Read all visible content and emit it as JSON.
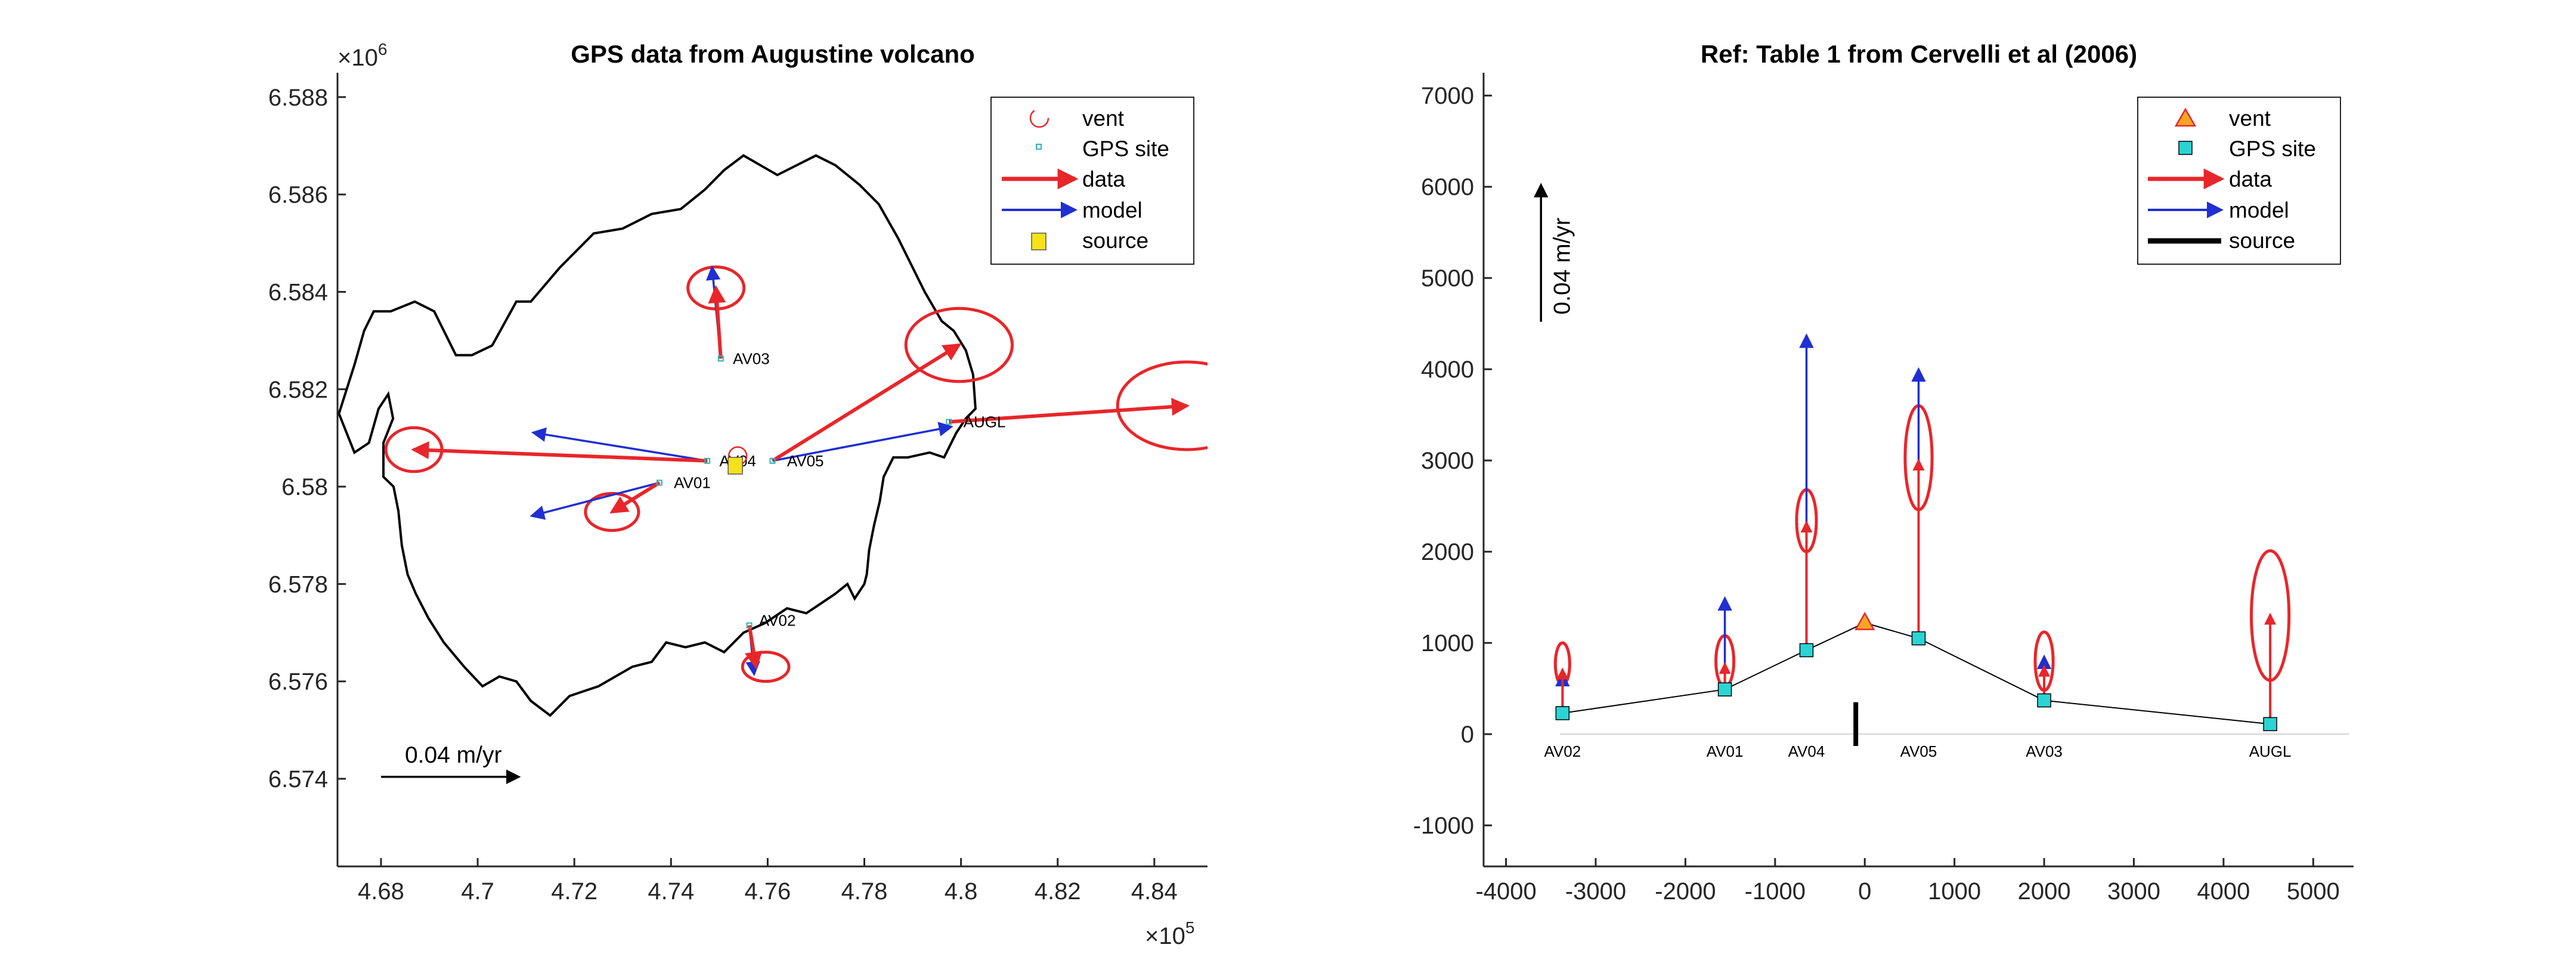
{
  "chart_data": [
    {
      "type": "scatter",
      "title": "GPS data from Augustine volcano",
      "xlabel": "",
      "ylabel": "",
      "x_exponent_label": "×10",
      "x_exponent": "5",
      "y_exponent_label": "×10",
      "y_exponent": "6",
      "xlim": [
        4.671,
        4.851
      ],
      "ylim": [
        6.5722,
        6.5885
      ],
      "xticks": [
        4.68,
        4.7,
        4.72,
        4.74,
        4.76,
        4.78,
        4.8,
        4.82,
        4.84
      ],
      "xtick_labels": [
        "4.68",
        "4.7",
        "4.72",
        "4.74",
        "4.76",
        "4.78",
        "4.8",
        "4.82",
        "4.84"
      ],
      "yticks": [
        6.574,
        6.576,
        6.578,
        6.58,
        6.582,
        6.584,
        6.586,
        6.588
      ],
      "ytick_labels": [
        "6.574",
        "6.576",
        "6.578",
        "6.58",
        "6.582",
        "6.584",
        "6.586",
        "6.588"
      ],
      "grid": false,
      "legend_position": "top-right",
      "legend": [
        {
          "label": "vent",
          "marker": "circle",
          "color": "#e8262a"
        },
        {
          "label": "GPS site",
          "marker": "square",
          "color": "#2ab4b4"
        },
        {
          "label": "data",
          "marker": "arrow",
          "color": "#e8262a"
        },
        {
          "label": "model",
          "marker": "arrow",
          "color": "#1f2fd1"
        },
        {
          "label": "source",
          "marker": "square",
          "color": "#f5e21a"
        }
      ],
      "coastline": [
        [
          4.6713,
          6.5815
        ],
        [
          4.6745,
          6.5807
        ],
        [
          4.6775,
          6.5809
        ],
        [
          4.6795,
          6.5816
        ],
        [
          4.6815,
          6.5819
        ],
        [
          4.6825,
          6.5814
        ],
        [
          4.6805,
          6.5809
        ],
        [
          4.6805,
          6.5802
        ],
        [
          4.6826,
          6.58
        ],
        [
          4.6836,
          6.5795
        ],
        [
          4.6843,
          6.5788
        ],
        [
          4.6855,
          6.5782
        ],
        [
          4.6872,
          6.5778
        ],
        [
          4.6898,
          6.5773
        ],
        [
          4.693,
          6.5768
        ],
        [
          4.6972,
          6.5763
        ],
        [
          4.701,
          6.5759
        ],
        [
          4.7045,
          6.5761
        ],
        [
          4.708,
          6.576
        ],
        [
          4.711,
          6.5756
        ],
        [
          4.715,
          6.5753
        ],
        [
          4.719,
          6.5757
        ],
        [
          4.722,
          6.5758
        ],
        [
          4.725,
          6.5759
        ],
        [
          4.7285,
          6.5761
        ],
        [
          4.732,
          6.5763
        ],
        [
          4.736,
          6.5764
        ],
        [
          4.739,
          6.5768
        ],
        [
          4.743,
          6.5767
        ],
        [
          4.747,
          6.5768
        ],
        [
          4.751,
          6.5766
        ],
        [
          4.755,
          6.577
        ],
        [
          4.7595,
          6.5772
        ],
        [
          4.764,
          6.5775
        ],
        [
          4.768,
          6.5774
        ],
        [
          4.771,
          6.5776
        ],
        [
          4.774,
          6.5778
        ],
        [
          4.7765,
          6.578
        ],
        [
          4.778,
          6.5777
        ],
        [
          4.78,
          6.578
        ],
        [
          4.7805,
          6.5782
        ],
        [
          4.781,
          6.5787
        ],
        [
          4.782,
          6.5792
        ],
        [
          4.7832,
          6.5797
        ],
        [
          4.784,
          6.5802
        ],
        [
          4.786,
          6.5806
        ],
        [
          4.789,
          6.5806
        ],
        [
          4.7935,
          6.5807
        ],
        [
          4.7965,
          6.5806
        ],
        [
          4.799,
          6.5811
        ],
        [
          4.801,
          6.5814
        ],
        [
          4.803,
          6.5816
        ],
        [
          4.8025,
          6.5823
        ],
        [
          4.801,
          6.5828
        ],
        [
          4.7985,
          6.5832
        ],
        [
          4.796,
          6.5834
        ],
        [
          4.7925,
          6.584
        ],
        [
          4.7895,
          6.5846
        ],
        [
          4.787,
          6.5851
        ],
        [
          4.783,
          6.5858
        ],
        [
          4.779,
          6.5862
        ],
        [
          4.774,
          6.5866
        ],
        [
          4.77,
          6.5868
        ],
        [
          4.766,
          6.5866
        ],
        [
          4.762,
          6.5864
        ],
        [
          4.755,
          6.5868
        ],
        [
          4.751,
          6.5865
        ],
        [
          4.747,
          6.5861
        ],
        [
          4.742,
          6.5857
        ],
        [
          4.736,
          6.5856
        ],
        [
          4.73,
          6.5853
        ],
        [
          4.724,
          6.5852
        ],
        [
          4.717,
          6.5845
        ],
        [
          4.711,
          6.5838
        ],
        [
          4.708,
          6.5838
        ],
        [
          4.703,
          6.5829
        ],
        [
          4.6988,
          6.5827
        ],
        [
          4.6955,
          6.5827
        ],
        [
          4.691,
          6.5836
        ],
        [
          4.687,
          6.5838
        ],
        [
          4.682,
          6.5836
        ],
        [
          4.6785,
          6.5836
        ],
        [
          4.6765,
          6.5832
        ],
        [
          4.6745,
          6.5825
        ],
        [
          4.6713,
          6.5815
        ]
      ],
      "vent": {
        "x": 4.7538,
        "y": 6.58063
      },
      "source": {
        "x": 4.7533,
        "y": 6.58043
      },
      "sites": [
        {
          "name": "AV01",
          "x": 4.7376,
          "y": 6.58008,
          "label_dx": 0.003,
          "label_dy": 0.0
        },
        {
          "name": "AV02",
          "x": 4.7562,
          "y": 6.57715,
          "label_dx": 0.002,
          "label_dy": 0.0001
        },
        {
          "name": "AV03",
          "x": 4.7503,
          "y": 6.58263,
          "label_dx": 0.0025,
          "label_dy": 0.0
        },
        {
          "name": "AV04",
          "x": 4.7475,
          "y": 6.58053,
          "label_dx": 0.0025,
          "label_dy": 0.0
        },
        {
          "name": "AV05",
          "x": 4.761,
          "y": 6.58053,
          "label_dx": 0.003,
          "label_dy": 0.0
        },
        {
          "name": "AUGL",
          "x": 4.7975,
          "y": 6.58133,
          "label_dx": 0.003,
          "label_dy": 0.0
        }
      ],
      "data_vectors": [
        {
          "site": "AV01",
          "dx": -0.0098,
          "dy": -0.0006
        },
        {
          "site": "AV02",
          "dx": 0.0014,
          "dy": -0.00085
        },
        {
          "site": "AV03",
          "dx": -0.001,
          "dy": 0.00145
        },
        {
          "site": "AV04",
          "dx": -0.0607,
          "dy": 0.00023
        },
        {
          "site": "AV05",
          "dx": 0.0386,
          "dy": 0.00238
        },
        {
          "site": "AUGL",
          "dx": 0.0492,
          "dy": 0.00033
        }
      ],
      "model_vectors": [
        {
          "site": "AV01",
          "dx": -0.0264,
          "dy": -0.00068
        },
        {
          "site": "AV02",
          "dx": 0.001,
          "dy": -0.001
        },
        {
          "site": "AV03",
          "dx": -0.0018,
          "dy": 0.00187
        },
        {
          "site": "AV04",
          "dx": -0.036,
          "dy": 0.00058
        },
        {
          "site": "AV05",
          "dx": 0.037,
          "dy": 0.0007
        }
      ],
      "error_ellipses": [
        {
          "site": "AV01",
          "cx": 4.7278,
          "cy": 6.57948,
          "rx": 0.0055,
          "ry": 0.00038
        },
        {
          "site": "AV02",
          "cx": 4.7596,
          "cy": 6.5763,
          "rx": 0.0048,
          "ry": 0.0003
        },
        {
          "site": "AV03",
          "cx": 4.7493,
          "cy": 6.58408,
          "rx": 0.0058,
          "ry": 0.00043
        },
        {
          "site": "AV04",
          "cx": 4.6868,
          "cy": 6.58076,
          "rx": 0.0058,
          "ry": 0.00045
        },
        {
          "site": "AV05",
          "cx": 4.7996,
          "cy": 6.58291,
          "rx": 0.011,
          "ry": 0.00075
        },
        {
          "site": "AUGL",
          "cx": 4.8467,
          "cy": 6.58166,
          "rx": 0.0143,
          "ry": 0.0009
        }
      ],
      "scale_bar": {
        "label": "0.04 m/yr",
        "x": 4.68,
        "y": 6.57404,
        "dx": 0.0285
      }
    },
    {
      "type": "scatter",
      "title": "Ref: Table 1 from Cervelli et al (2006)",
      "xlabel": "",
      "ylabel": "",
      "xlim": [
        -4250,
        5450
      ],
      "ylim": [
        -1450,
        7250
      ],
      "xticks": [
        -4000,
        -3000,
        -2000,
        -1000,
        0,
        1000,
        2000,
        3000,
        4000,
        5000
      ],
      "xtick_labels": [
        "-4000",
        "-3000",
        "-2000",
        "-1000",
        "0",
        "1000",
        "2000",
        "3000",
        "4000",
        "5000"
      ],
      "yticks": [
        -1000,
        0,
        1000,
        2000,
        3000,
        4000,
        5000,
        6000,
        7000
      ],
      "ytick_labels": [
        "-1000",
        "0",
        "1000",
        "2000",
        "3000",
        "4000",
        "5000",
        "6000",
        "7000"
      ],
      "grid": false,
      "legend_position": "top-right",
      "legend": [
        {
          "label": "vent",
          "marker": "triangle",
          "color": "#f5a623"
        },
        {
          "label": "GPS site",
          "marker": "square",
          "color": "#2ad4d4"
        },
        {
          "label": "data",
          "marker": "arrow",
          "color": "#e8262a"
        },
        {
          "label": "model",
          "marker": "arrow",
          "color": "#1f2fd1"
        },
        {
          "label": "source",
          "marker": "line",
          "color": "#000000"
        }
      ],
      "zero_line": {
        "xmin": -3400,
        "xmax": 5400
      },
      "vent": {
        "x": 0,
        "y": 1220
      },
      "source": {
        "x": -100,
        "y1": -130,
        "y2": 350
      },
      "sites": [
        {
          "name": "AV02",
          "x": -3370,
          "y": 230
        },
        {
          "name": "AV01",
          "x": -1560,
          "y": 490
        },
        {
          "name": "AV04",
          "x": -650,
          "y": 920
        },
        {
          "name": "AV05",
          "x": 600,
          "y": 1050
        },
        {
          "name": "AV03",
          "x": 2000,
          "y": 370
        },
        {
          "name": "AUGL",
          "x": 4520,
          "y": 110
        }
      ],
      "data_vectors": [
        {
          "site": "AV02",
          "dy": 480
        },
        {
          "site": "AV01",
          "dy": 280
        },
        {
          "site": "AV04",
          "dy": 1400
        },
        {
          "site": "AV05",
          "dy": 1950
        },
        {
          "site": "AV03",
          "dy": 370
        },
        {
          "site": "AUGL",
          "dy": 1200
        }
      ],
      "model_vectors": [
        {
          "site": "AV02",
          "dy": 430
        },
        {
          "site": "AV01",
          "dy": 1000
        },
        {
          "site": "AV04",
          "dy": 3450
        },
        {
          "site": "AV05",
          "dy": 2950
        },
        {
          "site": "AV03",
          "dy": 480
        },
        {
          "site": "AUGL",
          "dy": 0
        }
      ],
      "error_ellipses": [
        {
          "site": "AV02",
          "cx": -3370,
          "cy": 770,
          "rx": 80,
          "ry": 230
        },
        {
          "site": "AV01",
          "cx": -1560,
          "cy": 800,
          "rx": 100,
          "ry": 280
        },
        {
          "site": "AV04",
          "cx": -650,
          "cy": 2340,
          "rx": 110,
          "ry": 340
        },
        {
          "site": "AV05",
          "cx": 600,
          "cy": 3030,
          "rx": 150,
          "ry": 570
        },
        {
          "site": "AV03",
          "cx": 2000,
          "cy": 800,
          "rx": 100,
          "ry": 320
        },
        {
          "site": "AUGL",
          "cx": 4520,
          "cy": 1300,
          "rx": 210,
          "ry": 710
        }
      ],
      "scale_bar": {
        "label": "0.04 m/yr",
        "x": -3610,
        "y": 4520,
        "dy": 1500
      }
    }
  ]
}
